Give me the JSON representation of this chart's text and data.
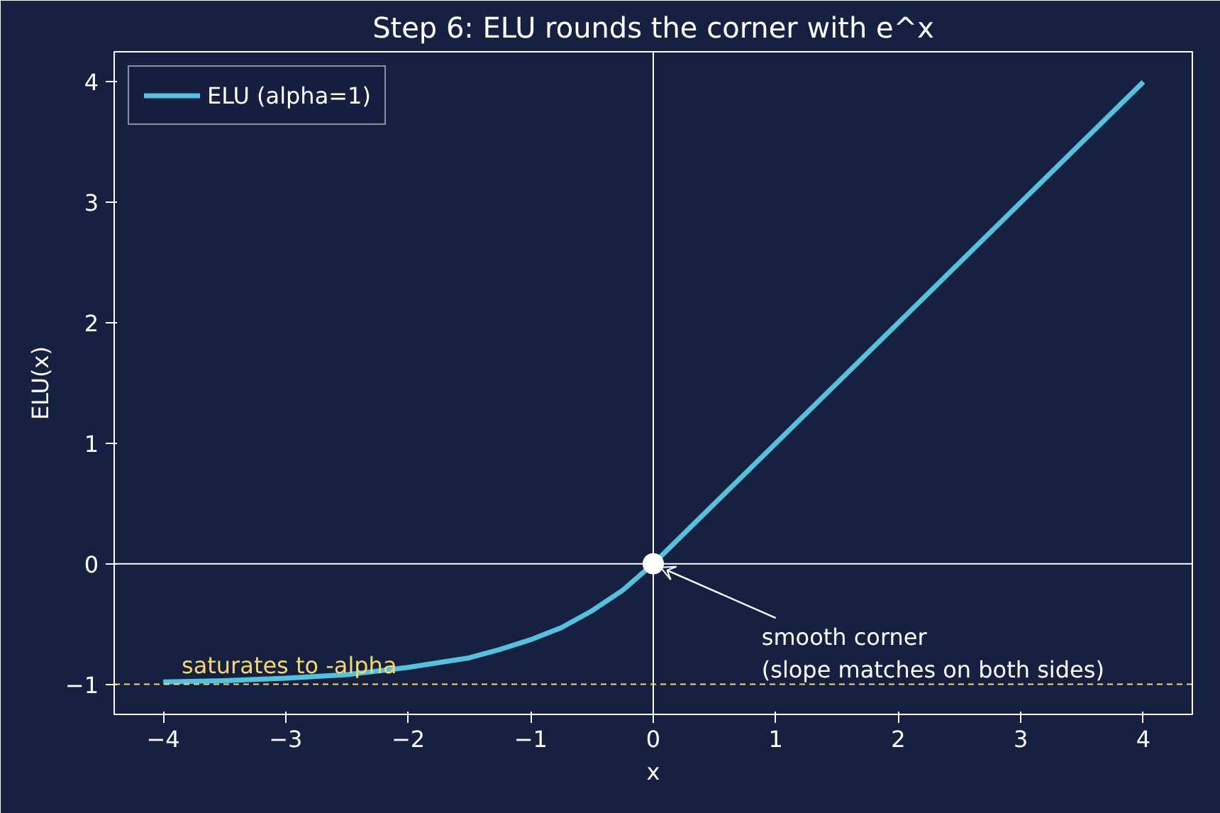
{
  "chart_data": {
    "type": "line",
    "title": "Step 6: ELU rounds the corner with e^x",
    "xlabel": "x",
    "ylabel": "ELU(x)",
    "x": [
      -4,
      -3.5,
      -3,
      -2.5,
      -2,
      -1.5,
      -1.25,
      -1,
      -0.75,
      -0.5,
      -0.25,
      0,
      4
    ],
    "series": [
      {
        "name": "ELU (alpha=1)",
        "color": "#56c1dc",
        "values": [
          -0.98,
          -0.97,
          -0.95,
          -0.92,
          -0.86,
          -0.78,
          -0.71,
          -0.63,
          -0.53,
          -0.39,
          -0.22,
          0,
          4
        ]
      },
      {
        "type": "scatter",
        "marker": "circle",
        "color": "#ffffff",
        "x": [
          0
        ],
        "values": [
          0
        ]
      }
    ],
    "xlim": [
      -4.4,
      4.4
    ],
    "ylim": [
      -1.25,
      4.25
    ],
    "xticks": [
      {
        "value": -4,
        "label": "−4"
      },
      {
        "value": -3,
        "label": "−3"
      },
      {
        "value": -2,
        "label": "−2"
      },
      {
        "value": -1,
        "label": "−1"
      },
      0,
      1,
      2,
      3,
      4
    ],
    "yticks": [
      {
        "value": -1,
        "label": "−1"
      },
      0,
      1,
      2,
      3,
      4
    ],
    "ref_lines": [
      {
        "axis": "x",
        "value": 0,
        "color": "#ffffff",
        "line_style": "solid"
      },
      {
        "axis": "y",
        "value": 0,
        "color": "#ffffff",
        "line_style": "solid"
      },
      {
        "axis": "y",
        "value": -1,
        "label": "saturates to -alpha",
        "color": "#f5d76e",
        "line_style": "dashed"
      }
    ],
    "annotations": [
      {
        "text": "smooth corner\n(slope matches on both sides)",
        "x": 0,
        "y": 0
      }
    ],
    "grid": false,
    "legend": "top left",
    "marker": "none",
    "line_style": "solid"
  }
}
